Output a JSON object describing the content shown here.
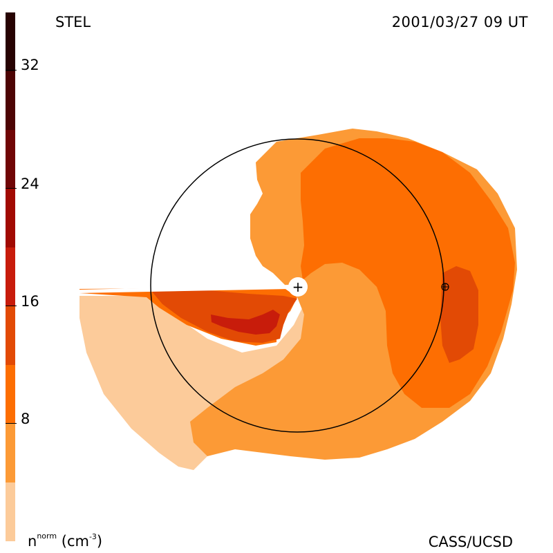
{
  "header": {
    "instrument": "STEL",
    "timestamp": "2001/03/27 09 UT"
  },
  "footer": {
    "credit": "CASS/UCSD",
    "units_base": "n",
    "units_sup": "norm",
    "units_paren_open": "(cm",
    "units_exp": "-3",
    "units_paren_close": ")"
  },
  "colorbar": {
    "ticks": [
      "32",
      "24",
      "16",
      "8"
    ],
    "tick_values": [
      32,
      24,
      16,
      8
    ],
    "range": [
      0,
      36
    ],
    "bands": [
      {
        "from": 0,
        "to": 4,
        "color": "#fccb9a"
      },
      {
        "from": 4,
        "to": 8,
        "color": "#fc9a36"
      },
      {
        "from": 8,
        "to": 12,
        "color": "#fd6e02"
      },
      {
        "from": 12,
        "to": 16,
        "color": "#e24a05"
      },
      {
        "from": 16,
        "to": 20,
        "color": "#c81c0b"
      },
      {
        "from": 20,
        "to": 24,
        "color": "#a10a02"
      },
      {
        "from": 24,
        "to": 28,
        "color": "#700606"
      },
      {
        "from": 28,
        "to": 32,
        "color": "#4d0404"
      },
      {
        "from": 32,
        "to": 36,
        "color": "#270302"
      }
    ]
  },
  "map": {
    "sun_symbol": "+",
    "earth_symbol": "⊕"
  }
}
